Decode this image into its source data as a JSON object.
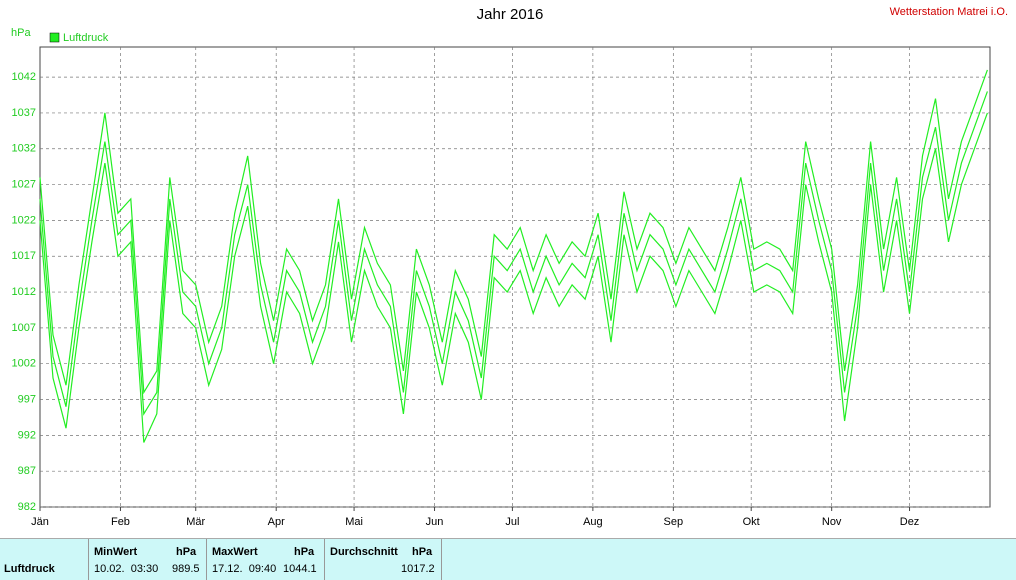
{
  "chart_data": {
    "type": "line",
    "title": "Jahr 2016",
    "station": "Wetterstation Matrei i.O.",
    "y_label": "hPa",
    "legend": "Luftdruck",
    "color": "#22ee22",
    "grid": true,
    "xlim": [
      0,
      366
    ],
    "ylim": [
      982,
      1046.2
    ],
    "yticks": [
      982,
      987,
      992,
      997,
      1002,
      1007,
      1012,
      1017,
      1022,
      1027,
      1032,
      1037,
      1042
    ],
    "xticks": [
      {
        "value": 0,
        "label": "Jän"
      },
      {
        "value": 31,
        "label": "Feb"
      },
      {
        "value": 60,
        "label": "Mär"
      },
      {
        "value": 91,
        "label": "Apr"
      },
      {
        "value": 121,
        "label": "Mai"
      },
      {
        "value": 152,
        "label": "Jun"
      },
      {
        "value": 182,
        "label": "Jul"
      },
      {
        "value": 213,
        "label": "Aug"
      },
      {
        "value": 244,
        "label": "Sep"
      },
      {
        "value": 274,
        "label": "Okt"
      },
      {
        "value": 305,
        "label": "Nov"
      },
      {
        "value": 335,
        "label": "Dez"
      }
    ],
    "x": [
      0,
      5,
      10,
      15,
      20,
      25,
      30,
      35,
      40,
      45,
      50,
      55,
      60,
      65,
      70,
      75,
      80,
      85,
      90,
      95,
      100,
      105,
      110,
      115,
      120,
      125,
      130,
      135,
      140,
      145,
      150,
      155,
      160,
      165,
      170,
      175,
      180,
      185,
      190,
      195,
      200,
      205,
      210,
      215,
      220,
      225,
      230,
      235,
      240,
      245,
      250,
      255,
      260,
      265,
      270,
      275,
      280,
      285,
      290,
      295,
      300,
      305,
      310,
      315,
      320,
      325,
      330,
      335,
      340,
      345,
      350,
      355,
      360,
      365
    ],
    "series": [
      {
        "values": [
          1025,
          1003,
          996,
          1010,
          1022,
          1033,
          1020,
          1022,
          995,
          998,
          1025,
          1012,
          1010,
          1002,
          1007,
          1020,
          1027,
          1013,
          1005,
          1015,
          1012,
          1005,
          1010,
          1022,
          1008,
          1018,
          1013,
          1010,
          998,
          1015,
          1010,
          1002,
          1012,
          1008,
          1000,
          1017,
          1015,
          1018,
          1012,
          1017,
          1013,
          1016,
          1014,
          1020,
          1008,
          1023,
          1015,
          1020,
          1018,
          1013,
          1018,
          1015,
          1012,
          1018,
          1025,
          1015,
          1016,
          1015,
          1012,
          1030,
          1022,
          1015,
          998,
          1010,
          1030,
          1015,
          1025,
          1012,
          1028,
          1035,
          1022,
          1030,
          1035,
          1040
        ]
      },
      {
        "values": [
          1022,
          1000,
          993,
          1007,
          1019,
          1030,
          1017,
          1019,
          991,
          995,
          1022,
          1009,
          1007,
          999,
          1004,
          1017,
          1024,
          1010,
          1002,
          1012,
          1009,
          1002,
          1007,
          1019,
          1005,
          1015,
          1010,
          1007,
          995,
          1012,
          1007,
          999,
          1009,
          1005,
          997,
          1014,
          1012,
          1015,
          1009,
          1014,
          1010,
          1013,
          1011,
          1017,
          1005,
          1020,
          1012,
          1017,
          1015,
          1010,
          1015,
          1012,
          1009,
          1015,
          1022,
          1012,
          1013,
          1012,
          1009,
          1027,
          1019,
          1012,
          994,
          1007,
          1027,
          1012,
          1022,
          1009,
          1025,
          1032,
          1019,
          1027,
          1032,
          1037
        ]
      },
      {
        "values": [
          1028,
          1006,
          999,
          1013,
          1025,
          1037,
          1023,
          1025,
          998,
          1001,
          1028,
          1015,
          1013,
          1005,
          1010,
          1023,
          1031,
          1016,
          1008,
          1018,
          1015,
          1008,
          1013,
          1025,
          1011,
          1021,
          1016,
          1013,
          1001,
          1018,
          1013,
          1005,
          1015,
          1011,
          1003,
          1020,
          1018,
          1021,
          1015,
          1020,
          1016,
          1019,
          1017,
          1023,
          1011,
          1026,
          1018,
          1023,
          1021,
          1016,
          1021,
          1018,
          1015,
          1021,
          1028,
          1018,
          1019,
          1018,
          1015,
          1033,
          1025,
          1018,
          1001,
          1013,
          1033,
          1018,
          1028,
          1015,
          1031,
          1039,
          1025,
          1033,
          1038,
          1043
        ]
      }
    ]
  },
  "summary": {
    "row_label": "Luftdruck",
    "min": {
      "title": "MinWert",
      "unit": "hPa",
      "time": "10.02.  03:30",
      "value": "989.5"
    },
    "max": {
      "title": "MaxWert",
      "unit": "hPa",
      "time": "17.12.  09:40",
      "value": "1044.1"
    },
    "avg": {
      "title": "Durchschnitt",
      "unit": "hPa",
      "value": "1017.2"
    }
  }
}
